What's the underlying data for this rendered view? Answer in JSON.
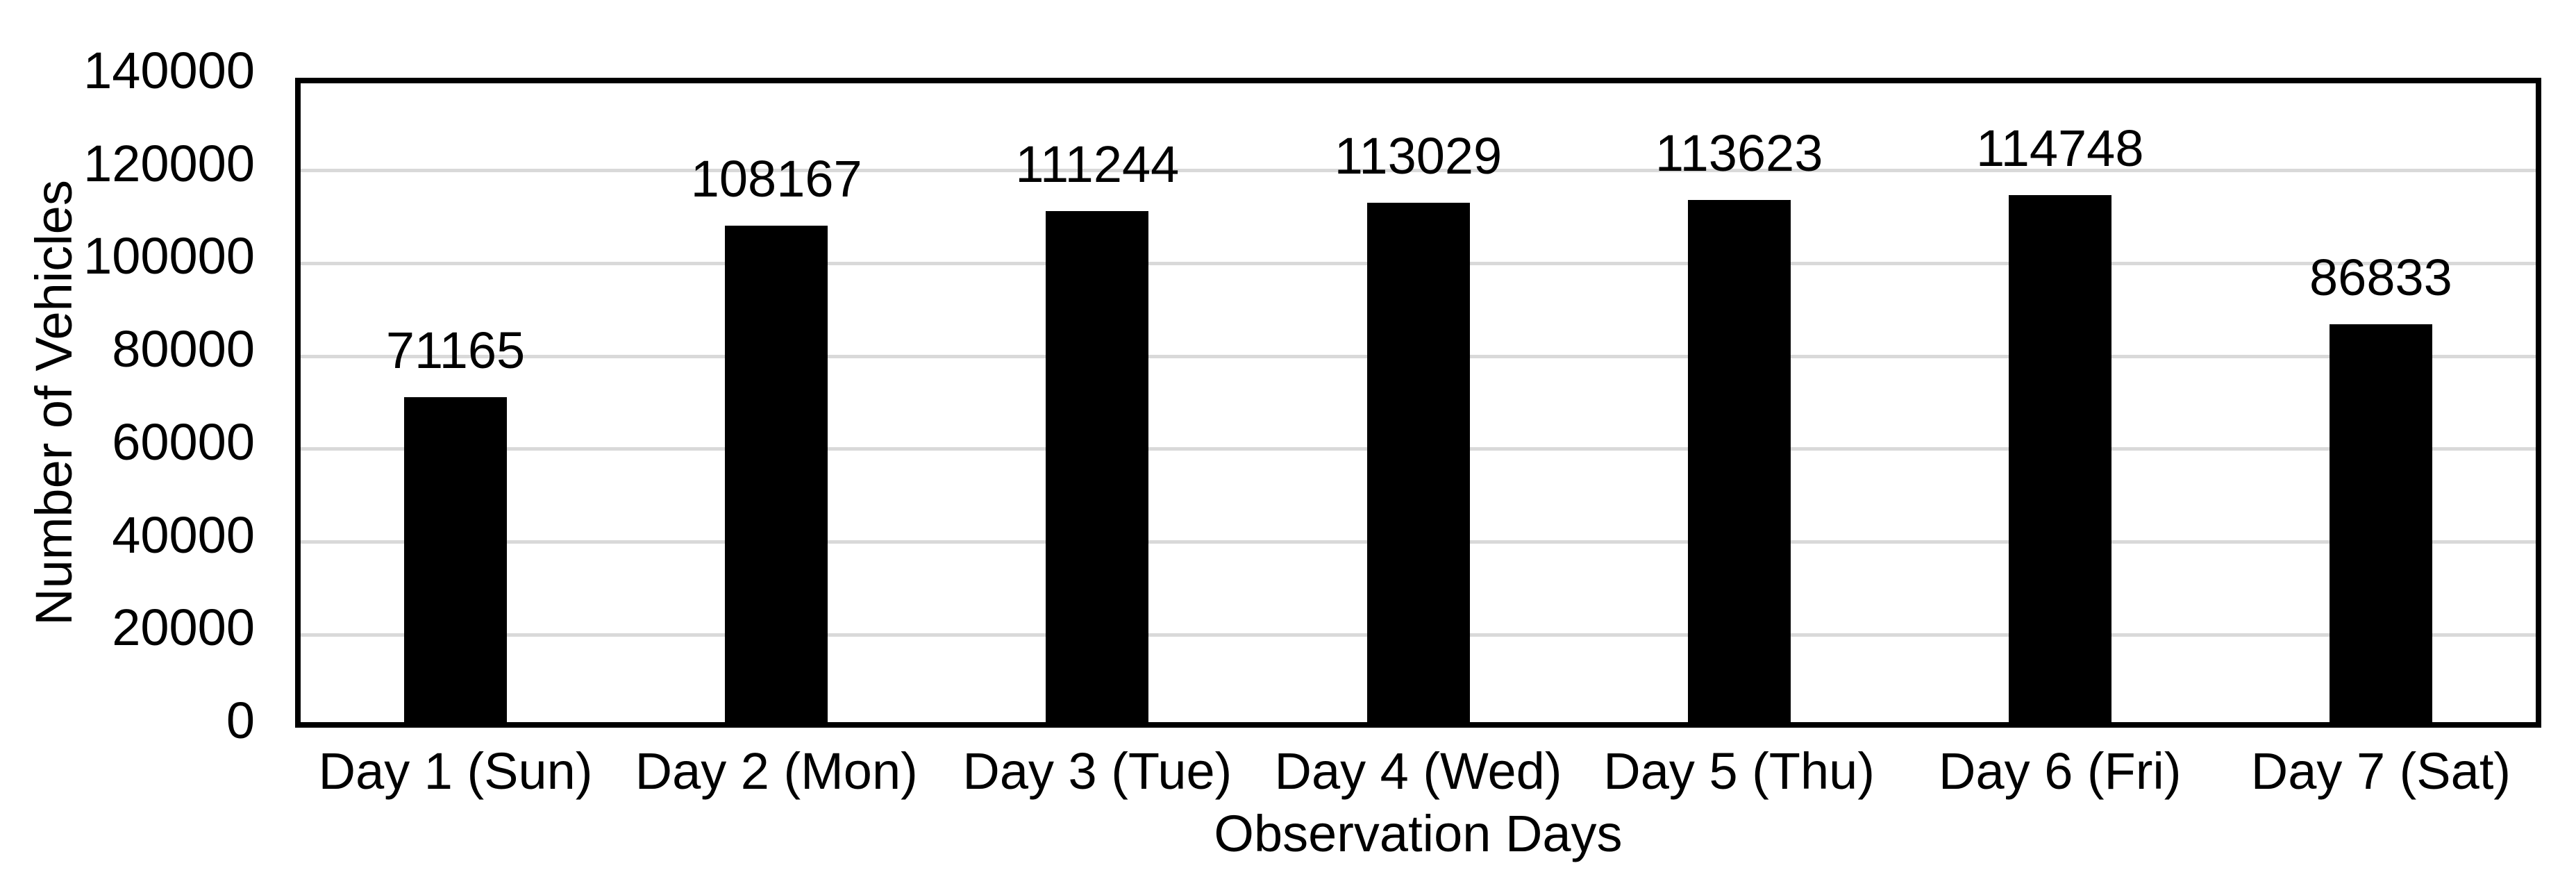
{
  "chart_data": {
    "type": "bar",
    "title": "",
    "categories": [
      "Day 1 (Sun)",
      "Day 2 (Mon)",
      "Day 3 (Tue)",
      "Day 4 (Wed)",
      "Day 5 (Thu)",
      "Day 6 (Fri)",
      "Day 7 (Sat)"
    ],
    "values": [
      71165,
      108167,
      111244,
      113029,
      113623,
      114748,
      86833
    ],
    "data_labels": [
      "71165",
      "108167",
      "111244",
      "113029",
      "113623",
      "114748",
      "86833"
    ],
    "xlabel": "Observation Days",
    "ylabel": "Number of Vehicles",
    "ylim": [
      0,
      140000
    ],
    "ytick_interval": 20000,
    "yticks": [
      "0",
      "20000",
      "40000",
      "60000",
      "80000",
      "100000",
      "120000",
      "140000"
    ],
    "grid": "horizontal",
    "legend": "none",
    "bar_color": "#000000",
    "gridline_color": "#d9d9d9",
    "axis_border_color": "#000000",
    "text_color": "#000000",
    "background_color": "#ffffff"
  }
}
